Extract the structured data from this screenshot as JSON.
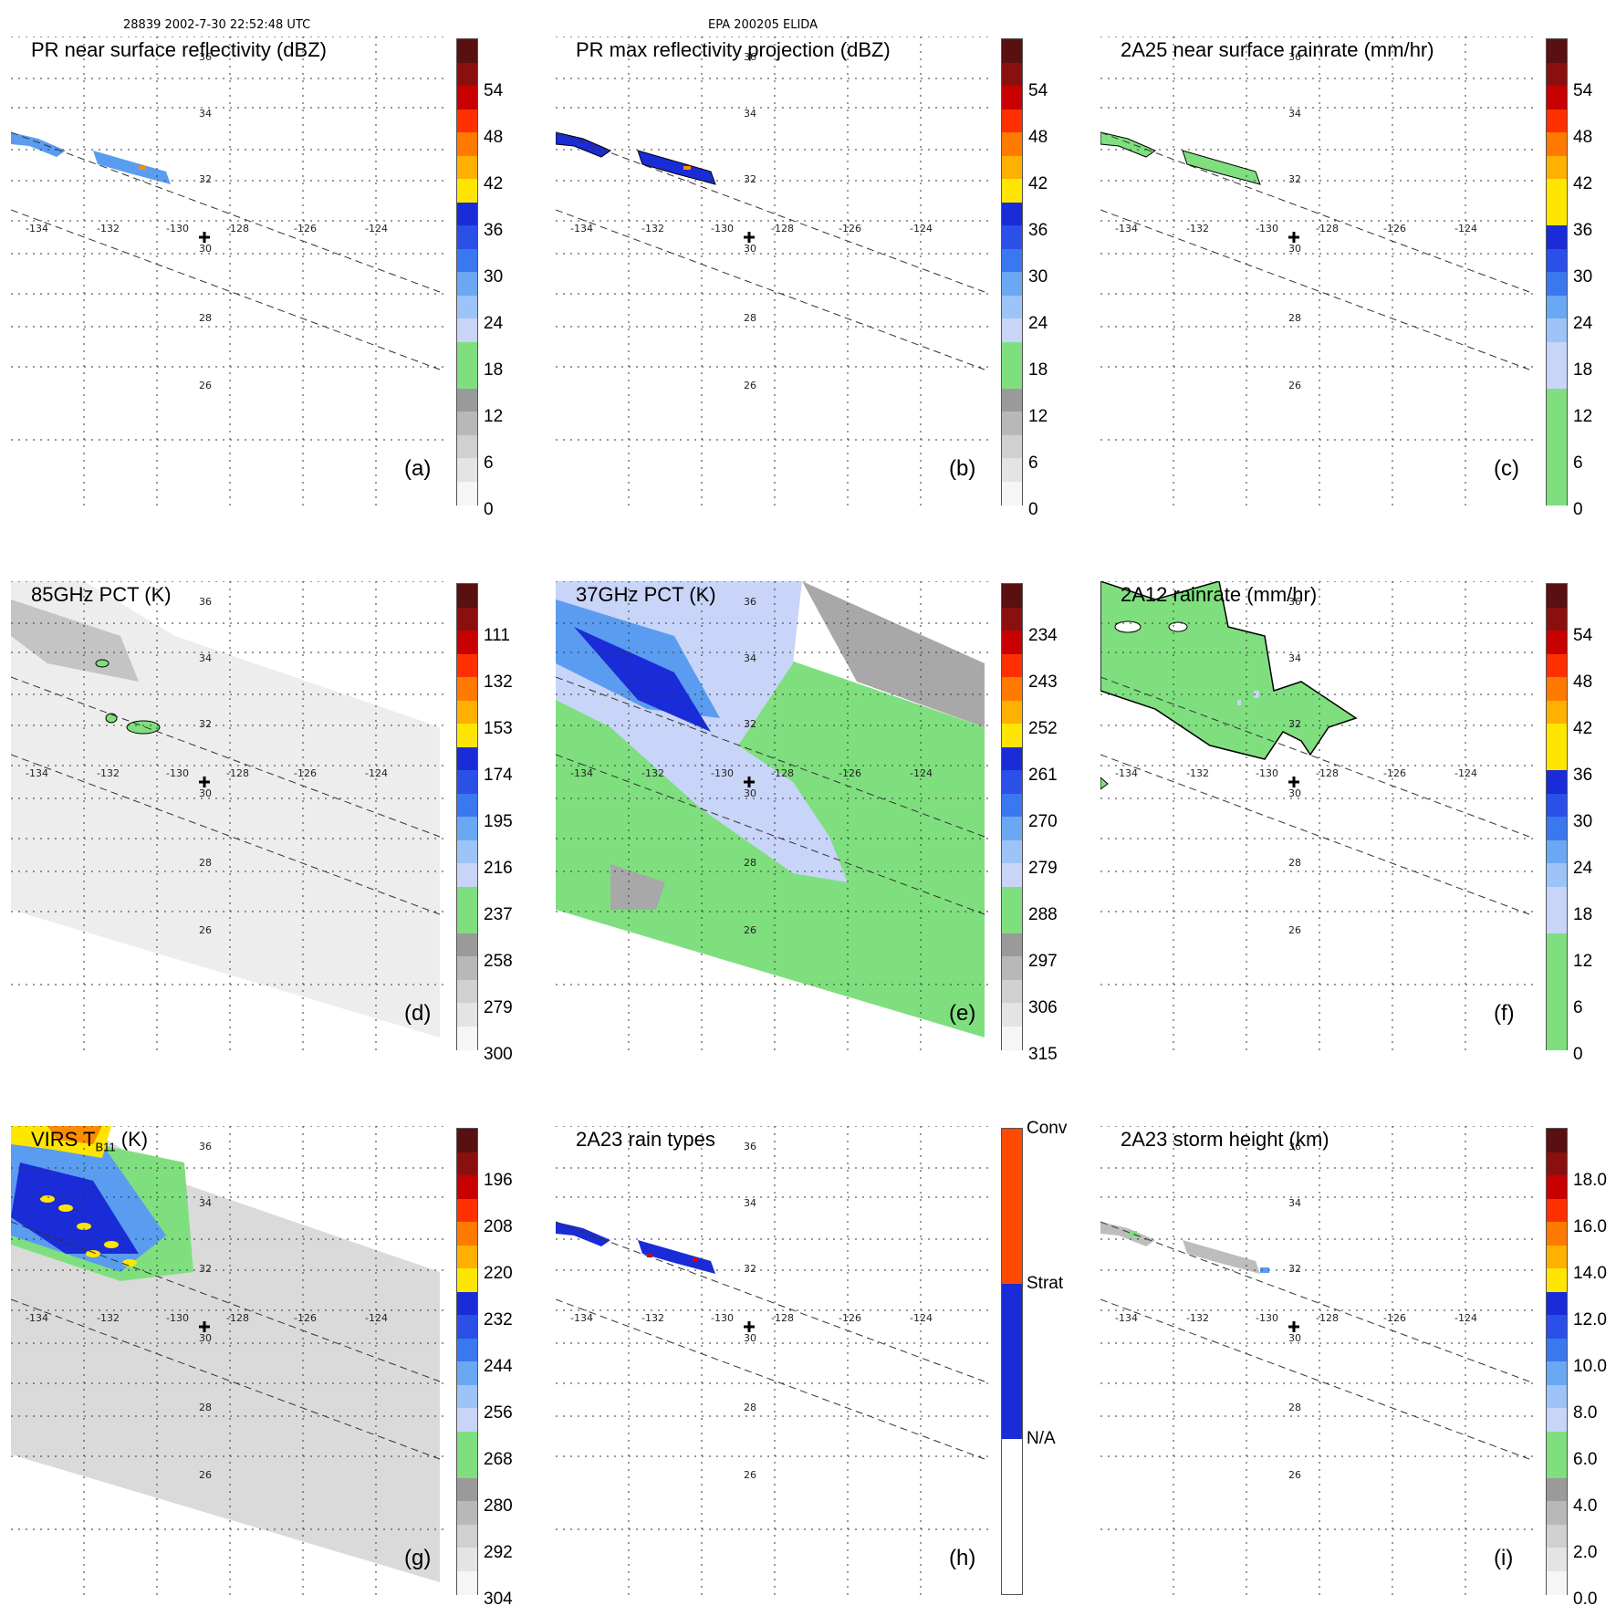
{
  "header": {
    "left": "28839 2002-7-30 22:52:48 UTC",
    "center": "EPA 200205 ELIDA"
  },
  "grid": {
    "lon_labels": [
      "-134",
      "-132",
      "-130",
      "-128",
      "-126",
      "-124"
    ],
    "lat_labels": [
      "36",
      "34",
      "32",
      "30",
      "28",
      "26"
    ]
  },
  "colors": {
    "green": "#7fdf7f",
    "lightblue": "#c8d4f8",
    "blue_mid": "#5a9cf0",
    "blue": "#1a2bd8",
    "yellow": "#ffe600",
    "orange": "#ff8c00",
    "red": "#e00000",
    "darkred": "#5a1010",
    "grey": "#a8a8a8"
  },
  "chart_data": [
    {
      "id": "a",
      "type": "heatmap",
      "title": "PR near surface reflectivity (dBZ)",
      "panel_label": "(a)",
      "colorbar": {
        "ticks": [
          "54",
          "48",
          "42",
          "36",
          "30",
          "24",
          "18",
          "12",
          "6",
          "0"
        ],
        "range": [
          0,
          60
        ]
      }
    },
    {
      "id": "b",
      "type": "heatmap",
      "title": "PR max reflectivity projection (dBZ)",
      "panel_label": "(b)",
      "colorbar": {
        "ticks": [
          "54",
          "48",
          "42",
          "36",
          "30",
          "24",
          "18",
          "12",
          "6",
          "0"
        ],
        "range": [
          0,
          60
        ]
      }
    },
    {
      "id": "c",
      "type": "heatmap",
      "title": "2A25 near surface rainrate (mm/hr)",
      "panel_label": "(c)",
      "colorbar": {
        "ticks": [
          "54",
          "48",
          "42",
          "36",
          "30",
          "24",
          "18",
          "12",
          "6",
          "0"
        ],
        "range": [
          0,
          60
        ]
      }
    },
    {
      "id": "d",
      "type": "heatmap",
      "title": "85GHz PCT (K)",
      "panel_label": "(d)",
      "colorbar": {
        "ticks": [
          "111",
          "132",
          "153",
          "174",
          "195",
          "216",
          "237",
          "258",
          "279",
          "300"
        ],
        "range": [
          90,
          300
        ]
      }
    },
    {
      "id": "e",
      "type": "heatmap",
      "title": "37GHz PCT (K)",
      "panel_label": "(e)",
      "colorbar": {
        "ticks": [
          "234",
          "243",
          "252",
          "261",
          "270",
          "279",
          "288",
          "297",
          "306",
          "315"
        ],
        "range": [
          225,
          315
        ]
      }
    },
    {
      "id": "f",
      "type": "heatmap",
      "title": "2A12 rainrate (mm/hr)",
      "panel_label": "(f)",
      "colorbar": {
        "ticks": [
          "54",
          "48",
          "42",
          "36",
          "30",
          "24",
          "18",
          "12",
          "6",
          "0"
        ],
        "range": [
          0,
          60
        ]
      }
    },
    {
      "id": "g",
      "type": "heatmap",
      "title": "VIRS T",
      "title_sub": "B11",
      "title_suffix": " (K)",
      "panel_label": "(g)",
      "colorbar": {
        "ticks": [
          "196",
          "208",
          "220",
          "232",
          "244",
          "256",
          "268",
          "280",
          "292",
          "304"
        ],
        "range": [
          184,
          304
        ]
      }
    },
    {
      "id": "h",
      "type": "heatmap",
      "title": "2A23 rain types",
      "panel_label": "(h)",
      "colorbar": {
        "categories": [
          "Conv",
          "Strat",
          "N/A"
        ]
      }
    },
    {
      "id": "i",
      "type": "heatmap",
      "title": "2A23 storm height (km)",
      "panel_label": "(i)",
      "colorbar": {
        "ticks": [
          "18.0",
          "16.0",
          "14.0",
          "12.0",
          "10.0",
          "8.0",
          "6.0",
          "4.0",
          "2.0",
          "0.0"
        ],
        "range": [
          0,
          20
        ]
      }
    }
  ]
}
